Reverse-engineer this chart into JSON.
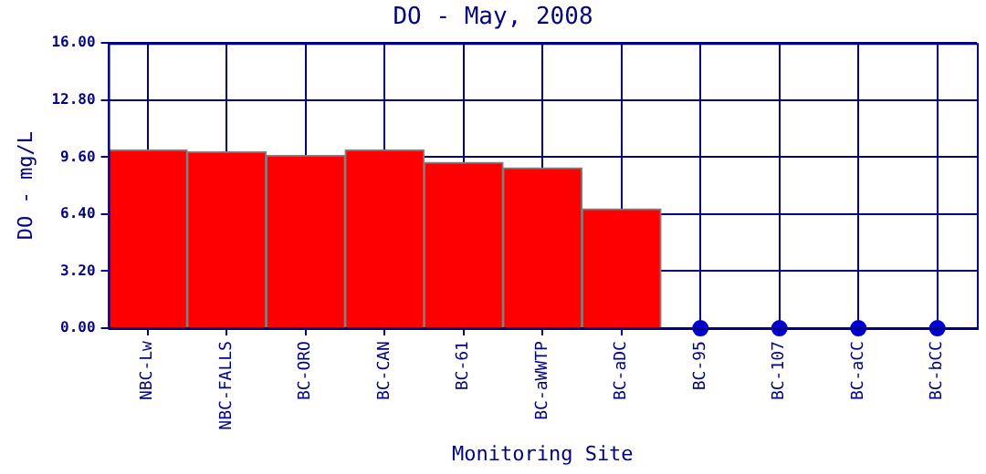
{
  "chart_data": {
    "type": "bar",
    "title": "DO - May, 2008",
    "xlabel": "Monitoring Site",
    "ylabel": "DO - mg/L",
    "categories": [
      "NBC-Lw",
      "NBC-FALLS",
      "BC-ORO",
      "BC-CAN",
      "BC-61",
      "BC-aWWTP",
      "BC-aDC",
      "BC-95",
      "BC-107",
      "BC-aCC",
      "BC-bCC"
    ],
    "series": [
      {
        "color": "#ff0000",
        "values": [
          10.0,
          9.9,
          9.7,
          10.0,
          9.3,
          9.0,
          6.7,
          null,
          null,
          null,
          null
        ]
      },
      {
        "type": "scatter",
        "color": "#0000cc",
        "x": [
          "BC-95",
          "BC-107",
          "BC-aCC",
          "BC-bCC"
        ],
        "values": [
          0,
          0,
          0,
          0
        ]
      }
    ],
    "ylim": [
      0,
      16
    ],
    "yticks": [
      {
        "value": 0,
        "label": "0.00"
      },
      {
        "value": 3.2,
        "label": "3.20"
      },
      {
        "value": 6.4,
        "label": "6.40"
      },
      {
        "value": 9.6,
        "label": "9.60"
      },
      {
        "value": 12.8,
        "label": "12.80"
      },
      {
        "value": 16,
        "label": "16.00"
      }
    ],
    "grid": true,
    "legend": false,
    "marker": "circle"
  }
}
